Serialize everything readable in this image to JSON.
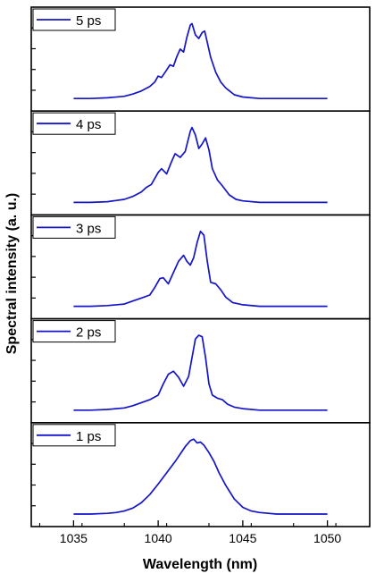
{
  "chart_data": {
    "type": "line",
    "xlabel": "Wavelength (nm)",
    "ylabel": "Spectral intensity (a. u.)",
    "xlim": [
      1032.5,
      1052.5
    ],
    "x_ticks": [
      1035,
      1040,
      1045,
      1050
    ],
    "x_tick_labels": [
      "1035",
      "1040",
      "1045",
      "1050"
    ],
    "line_color": "#1414c8",
    "legend_position": "top-left",
    "panels": [
      {
        "name": "5 ps",
        "ylim": [
          0,
          1.1
        ],
        "x": [
          1035,
          1036,
          1037,
          1038,
          1038.5,
          1039,
          1039.5,
          1039.8,
          1040.0,
          1040.2,
          1040.5,
          1040.7,
          1040.9,
          1041.1,
          1041.3,
          1041.5,
          1041.7,
          1041.9,
          1042.0,
          1042.2,
          1042.4,
          1042.6,
          1042.75,
          1042.9,
          1043.1,
          1043.4,
          1043.7,
          1044,
          1044.5,
          1045,
          1046,
          1047,
          1048,
          1049,
          1050
        ],
        "y": [
          0.0,
          0.0,
          0.01,
          0.03,
          0.06,
          0.1,
          0.16,
          0.22,
          0.3,
          0.28,
          0.38,
          0.45,
          0.43,
          0.56,
          0.66,
          0.62,
          0.82,
          0.98,
          1.0,
          0.85,
          0.8,
          0.88,
          0.9,
          0.75,
          0.55,
          0.35,
          0.22,
          0.14,
          0.05,
          0.02,
          0.0,
          0.0,
          0.0,
          0.0,
          0.0
        ]
      },
      {
        "name": "4 ps",
        "ylim": [
          0,
          1.1
        ],
        "x": [
          1035,
          1036,
          1037,
          1038,
          1038.5,
          1039,
          1039.3,
          1039.6,
          1040.0,
          1040.2,
          1040.5,
          1040.8,
          1041.0,
          1041.3,
          1041.6,
          1041.9,
          1042.0,
          1042.2,
          1042.4,
          1042.6,
          1042.8,
          1043.0,
          1043.2,
          1043.5,
          1043.8,
          1044.2,
          1044.6,
          1045,
          1046,
          1047,
          1048,
          1049,
          1050
        ],
        "y": [
          0.0,
          0.0,
          0.01,
          0.04,
          0.08,
          0.14,
          0.2,
          0.24,
          0.4,
          0.45,
          0.38,
          0.55,
          0.65,
          0.6,
          0.68,
          0.95,
          1.0,
          0.9,
          0.72,
          0.78,
          0.86,
          0.7,
          0.45,
          0.3,
          0.22,
          0.1,
          0.04,
          0.02,
          0.0,
          0.0,
          0.0,
          0.0,
          0.0
        ]
      },
      {
        "name": "3 ps",
        "ylim": [
          0,
          1.1
        ],
        "x": [
          1035,
          1036,
          1037,
          1038,
          1038.5,
          1039,
          1039.5,
          1039.8,
          1040.1,
          1040.3,
          1040.6,
          1040.9,
          1041.2,
          1041.5,
          1041.7,
          1041.9,
          1042.1,
          1042.3,
          1042.5,
          1042.7,
          1042.9,
          1043.1,
          1043.4,
          1043.7,
          1044.0,
          1044.4,
          1045,
          1046,
          1047,
          1048,
          1049,
          1050
        ],
        "y": [
          0.0,
          0.0,
          0.01,
          0.03,
          0.07,
          0.11,
          0.15,
          0.25,
          0.37,
          0.38,
          0.3,
          0.45,
          0.6,
          0.68,
          0.6,
          0.55,
          0.65,
          0.85,
          1.0,
          0.95,
          0.6,
          0.32,
          0.3,
          0.22,
          0.12,
          0.05,
          0.02,
          0.0,
          0.0,
          0.0,
          0.0,
          0.0
        ]
      },
      {
        "name": "2 ps",
        "ylim": [
          0,
          1.1
        ],
        "x": [
          1035,
          1036,
          1037,
          1038,
          1038.5,
          1039,
          1039.5,
          1040.0,
          1040.3,
          1040.6,
          1040.9,
          1041.2,
          1041.5,
          1041.8,
          1042.0,
          1042.2,
          1042.4,
          1042.6,
          1042.8,
          1043.0,
          1043.2,
          1043.5,
          1043.8,
          1044.1,
          1044.5,
          1045,
          1046,
          1047,
          1048,
          1049,
          1050
        ],
        "y": [
          0.0,
          0.0,
          0.01,
          0.03,
          0.06,
          0.1,
          0.14,
          0.2,
          0.35,
          0.48,
          0.52,
          0.44,
          0.32,
          0.45,
          0.7,
          0.95,
          1.0,
          0.98,
          0.7,
          0.35,
          0.2,
          0.16,
          0.14,
          0.08,
          0.04,
          0.02,
          0.0,
          0.0,
          0.0,
          0.0,
          0.0
        ]
      },
      {
        "name": "1 ps",
        "ylim": [
          0,
          1.1
        ],
        "x": [
          1035,
          1036,
          1037,
          1037.5,
          1038,
          1038.5,
          1039,
          1039.5,
          1040,
          1040.5,
          1041,
          1041.3,
          1041.6,
          1041.9,
          1042.1,
          1042.3,
          1042.5,
          1042.7,
          1043.0,
          1043.3,
          1043.6,
          1044.0,
          1044.5,
          1045,
          1045.5,
          1046,
          1047,
          1048,
          1049,
          1050
        ],
        "y": [
          0.0,
          0.0,
          0.01,
          0.02,
          0.04,
          0.08,
          0.15,
          0.26,
          0.4,
          0.55,
          0.7,
          0.8,
          0.9,
          0.98,
          1.0,
          0.95,
          0.96,
          0.92,
          0.82,
          0.7,
          0.55,
          0.38,
          0.2,
          0.09,
          0.04,
          0.02,
          0.0,
          0.0,
          0.0,
          0.0
        ]
      }
    ]
  }
}
